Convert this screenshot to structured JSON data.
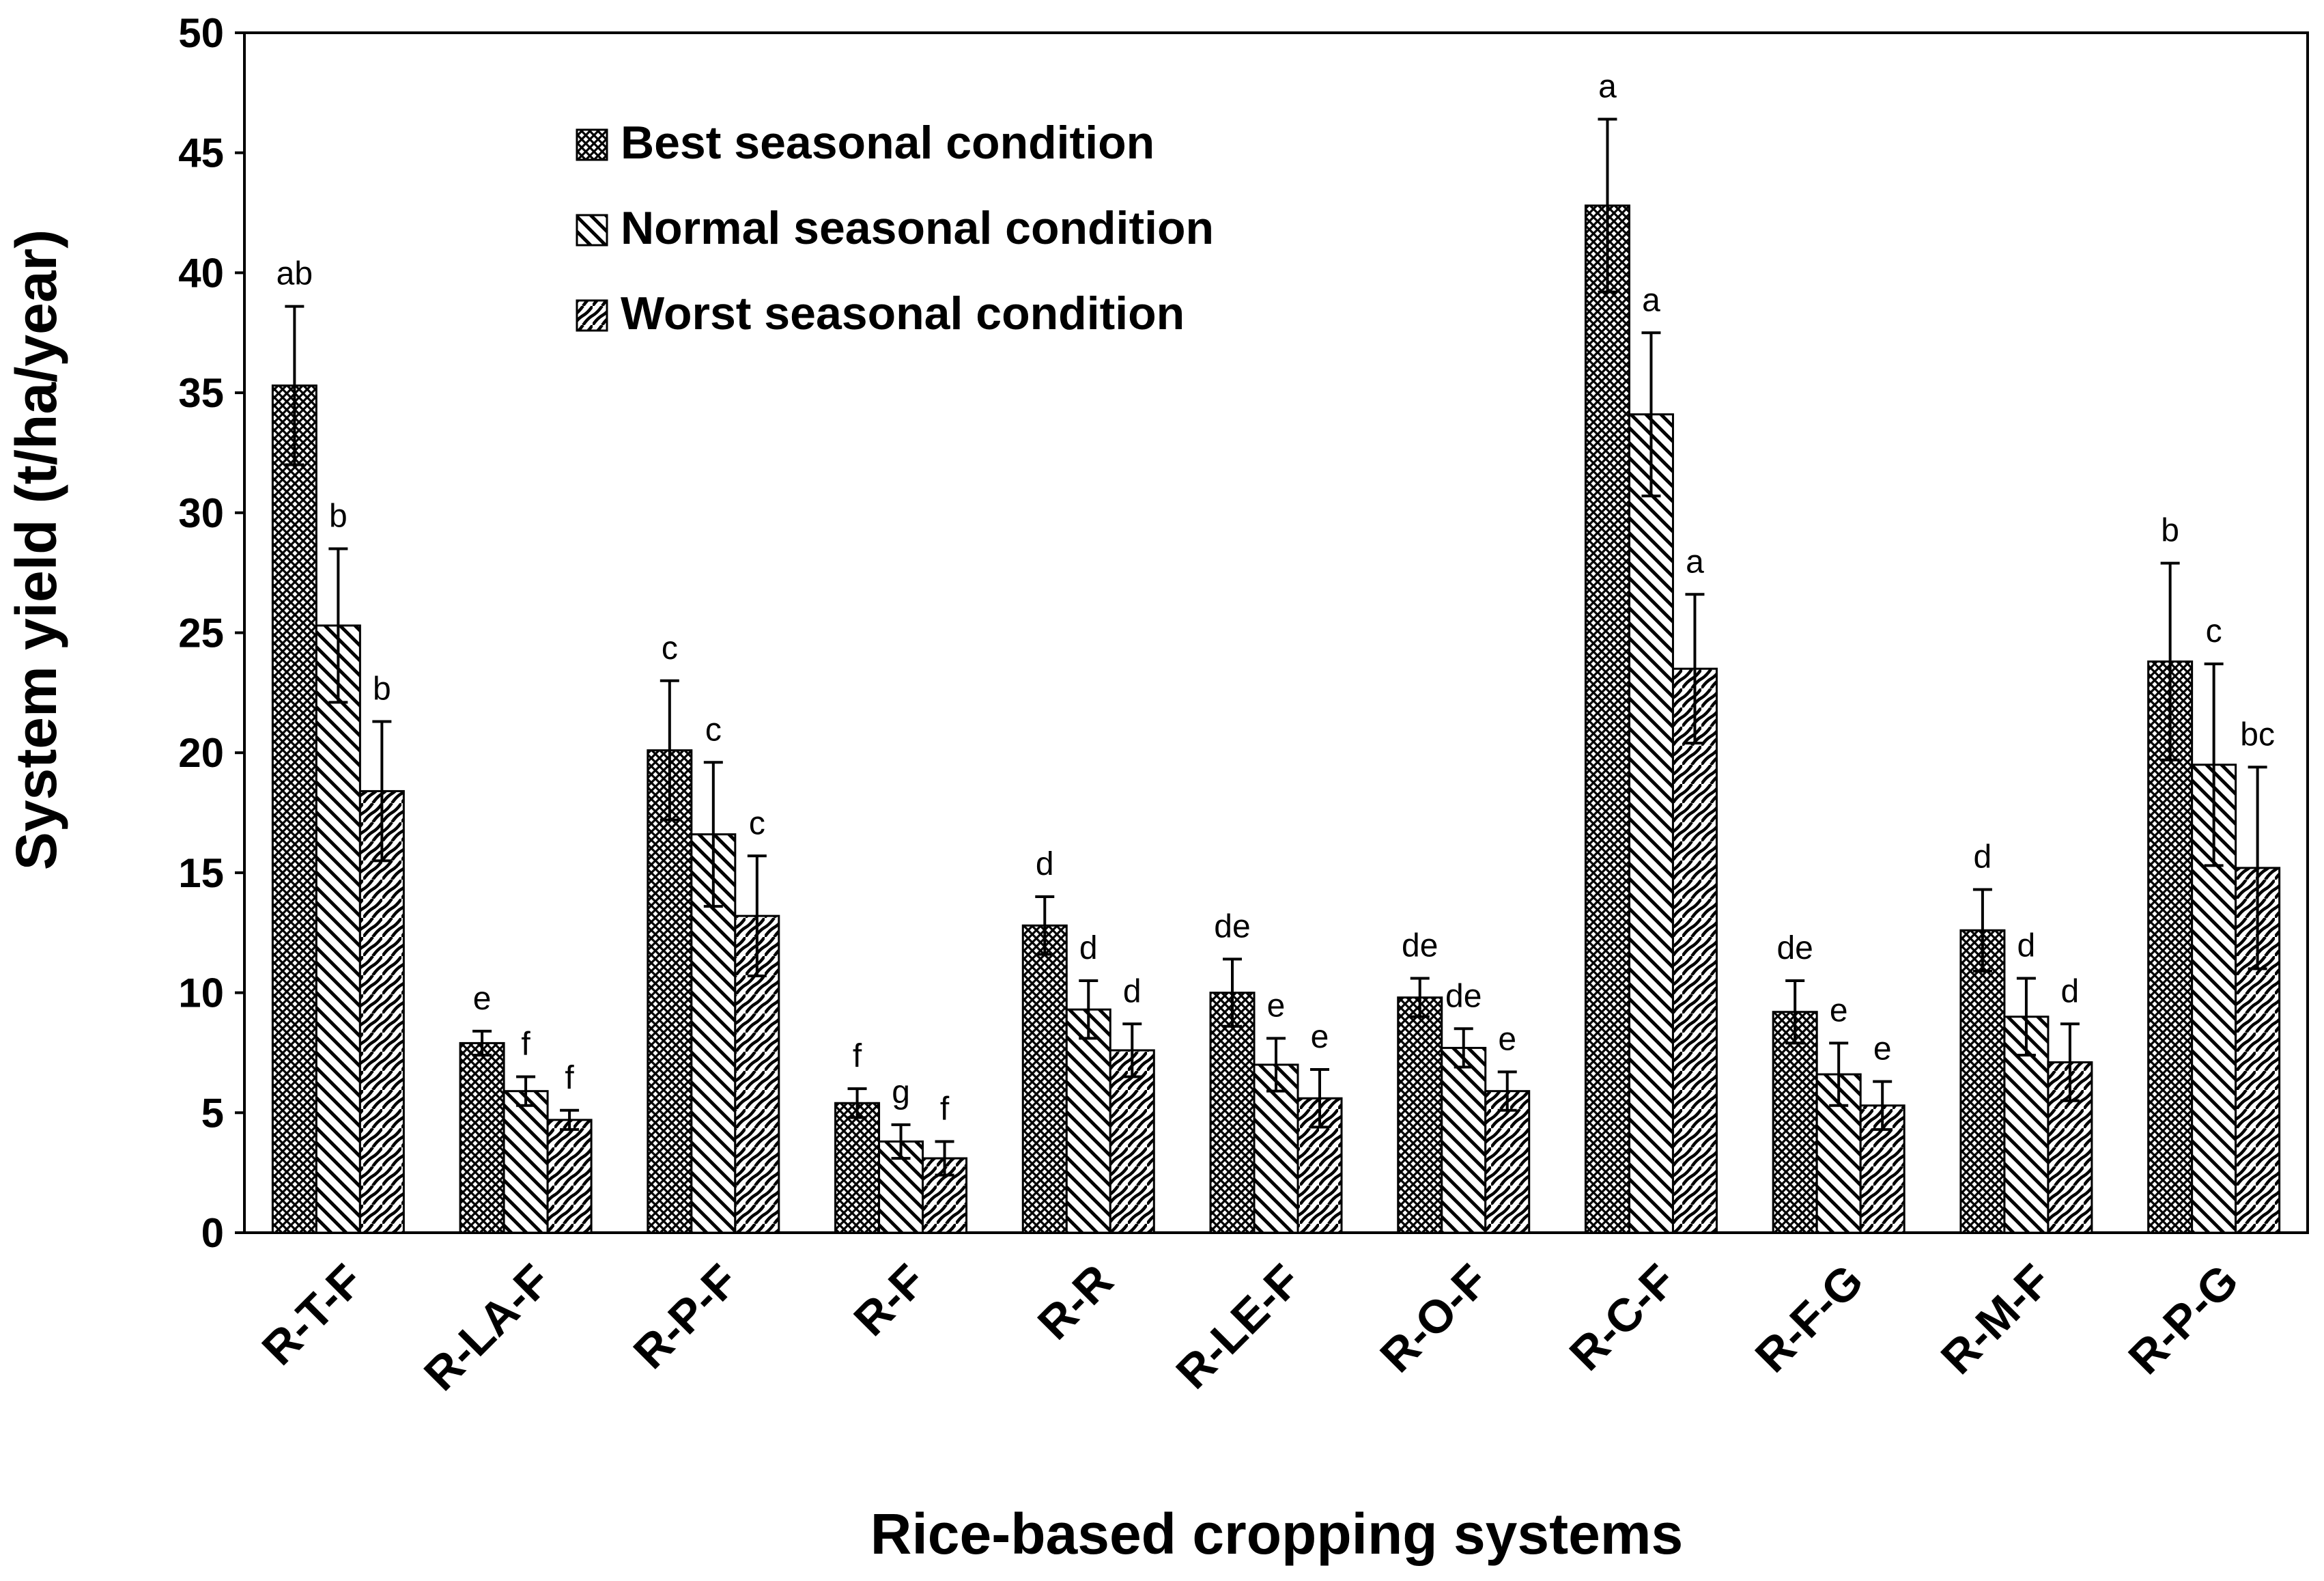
{
  "chart_data": {
    "type": "bar",
    "title": "",
    "xlabel": "Rice-based cropping systems",
    "ylabel": "System yield (t/ha/year)",
    "ylim": [
      0,
      50
    ],
    "yticks": [
      "0",
      "5",
      "10",
      "15",
      "20",
      "25",
      "30",
      "35",
      "40",
      "45",
      "50"
    ],
    "categories": [
      "R-T-F",
      "R-LA-F",
      "R-P-F",
      "R-F",
      "R-R",
      "R-LE-F",
      "R-O-F",
      "R-C-F",
      "R-F-G",
      "R-M-F",
      "R-P-G"
    ],
    "series": [
      {
        "name": "Best seasonal condition",
        "pattern": "crosshatch",
        "values": [
          35.3,
          7.9,
          20.1,
          5.4,
          12.8,
          10.0,
          9.8,
          42.8,
          9.2,
          12.6,
          23.8
        ],
        "errors": [
          3.3,
          0.5,
          2.9,
          0.6,
          1.2,
          1.4,
          0.8,
          3.6,
          1.3,
          1.7,
          4.1
        ],
        "labels": [
          "ab",
          "e",
          "c",
          "f",
          "d",
          "de",
          "de",
          "a",
          "de",
          "d",
          "b"
        ]
      },
      {
        "name": "Normal seasonal condition",
        "pattern": "diagonal",
        "values": [
          25.3,
          5.9,
          16.6,
          3.8,
          9.3,
          7.0,
          7.7,
          34.1,
          6.6,
          9.0,
          19.5
        ],
        "errors": [
          3.2,
          0.6,
          3.0,
          0.7,
          1.2,
          1.1,
          0.8,
          3.4,
          1.3,
          1.6,
          4.2
        ],
        "labels": [
          "b",
          "f",
          "c",
          "g",
          "d",
          "e",
          "de",
          "a",
          "e",
          "d",
          "c"
        ]
      },
      {
        "name": "Worst seasonal condition",
        "pattern": "wave",
        "values": [
          18.4,
          4.7,
          13.2,
          3.1,
          7.6,
          5.6,
          5.9,
          23.5,
          5.3,
          7.1,
          15.2
        ],
        "errors": [
          2.9,
          0.4,
          2.5,
          0.7,
          1.1,
          1.2,
          0.8,
          3.1,
          1.0,
          1.6,
          4.2
        ],
        "labels": [
          "b",
          "f",
          "c",
          "f",
          "d",
          "e",
          "e",
          "a",
          "e",
          "d",
          "bc"
        ]
      }
    ],
    "legend_position": "top-center"
  }
}
